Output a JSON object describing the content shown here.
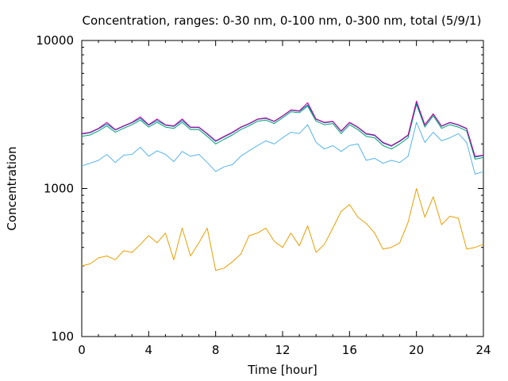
{
  "chart_data": {
    "type": "line",
    "title": "Concentration, ranges: 0-30 nm, 0-100 nm, 0-300 nm, total (5/9/1)",
    "xlabel": "Time [hour]",
    "ylabel": "Concentration",
    "xlim": [
      0,
      24
    ],
    "ylim": [
      100,
      10000
    ],
    "yscale": "log",
    "grid": false,
    "legend": "none",
    "xticks": [
      0,
      4,
      8,
      12,
      16,
      20,
      24
    ],
    "xtick_labels": [
      "0",
      "4",
      "8",
      "12",
      "16",
      "20",
      "24"
    ],
    "yticks": [
      100,
      1000,
      10000
    ],
    "ytick_labels": [
      "100",
      "1000",
      "10000"
    ],
    "series": [
      {
        "color": "#e69f00",
        "x": [
          0,
          0.5,
          1,
          1.5,
          2,
          2.5,
          3,
          3.5,
          4,
          4.5,
          5,
          5.5,
          6,
          6.5,
          7,
          7.5,
          8,
          8.5,
          9,
          9.5,
          10,
          10.5,
          11,
          11.5,
          12,
          12.5,
          13,
          13.5,
          14,
          14.5,
          15,
          15.5,
          16,
          16.5,
          17,
          17.5,
          18,
          18.5,
          19,
          19.5,
          20,
          20.5,
          21,
          21.5,
          22,
          22.5,
          23,
          23.5,
          24
        ],
        "values": [
          300,
          310,
          340,
          350,
          330,
          380,
          370,
          420,
          480,
          430,
          500,
          330,
          540,
          350,
          430,
          540,
          280,
          290,
          320,
          360,
          480,
          500,
          540,
          440,
          400,
          500,
          410,
          560,
          370,
          420,
          540,
          700,
          780,
          640,
          580,
          500,
          390,
          400,
          430,
          590,
          1000,
          640,
          880,
          570,
          650,
          630,
          390,
          400,
          420
        ]
      },
      {
        "color": "#56b4e9",
        "x": [
          0,
          0.5,
          1,
          1.5,
          2,
          2.5,
          3,
          3.5,
          4,
          4.5,
          5,
          5.5,
          6,
          6.5,
          7,
          7.5,
          8,
          8.5,
          9,
          9.5,
          10,
          10.5,
          11,
          11.5,
          12,
          12.5,
          13,
          13.5,
          14,
          14.5,
          15,
          15.5,
          16,
          16.5,
          17,
          17.5,
          18,
          18.5,
          19,
          19.5,
          20,
          20.5,
          21,
          21.5,
          22,
          22.5,
          23,
          23.5,
          24
        ],
        "values": [
          1420,
          1480,
          1550,
          1700,
          1500,
          1680,
          1700,
          1900,
          1650,
          1800,
          1700,
          1520,
          1780,
          1650,
          1700,
          1500,
          1300,
          1400,
          1450,
          1650,
          1800,
          1950,
          2100,
          2000,
          2200,
          2400,
          2350,
          2700,
          2050,
          1850,
          1950,
          1780,
          1950,
          2000,
          1550,
          1600,
          1480,
          1550,
          1500,
          1650,
          2800,
          2050,
          2400,
          2100,
          2200,
          2350,
          2050,
          1250,
          1300
        ]
      },
      {
        "color": "#009e73",
        "x": [
          0,
          0.5,
          1,
          1.5,
          2,
          2.5,
          3,
          3.5,
          4,
          4.5,
          5,
          5.5,
          6,
          6.5,
          7,
          7.5,
          8,
          8.5,
          9,
          9.5,
          10,
          10.5,
          11,
          11.5,
          12,
          12.5,
          13,
          13.5,
          14,
          14.5,
          15,
          15.5,
          16,
          16.5,
          17,
          17.5,
          18,
          18.5,
          19,
          19.5,
          20,
          20.5,
          21,
          21.5,
          22,
          22.5,
          23,
          23.5,
          24
        ],
        "values": [
          2250,
          2300,
          2450,
          2650,
          2400,
          2550,
          2700,
          2900,
          2600,
          2800,
          2600,
          2550,
          2800,
          2500,
          2500,
          2250,
          2000,
          2150,
          2300,
          2500,
          2650,
          2850,
          2900,
          2750,
          3000,
          3300,
          3250,
          3600,
          2850,
          2700,
          2750,
          2350,
          2700,
          2500,
          2250,
          2200,
          1950,
          1850,
          2000,
          2200,
          3700,
          2600,
          3100,
          2550,
          2700,
          2600,
          2450,
          1580,
          1620
        ]
      },
      {
        "color": "#0072b2",
        "x": [
          0,
          0.5,
          1,
          1.5,
          2,
          2.5,
          3,
          3.5,
          4,
          4.5,
          5,
          5.5,
          6,
          6.5,
          7,
          7.5,
          8,
          8.5,
          9,
          9.5,
          10,
          10.5,
          11,
          11.5,
          12,
          12.5,
          13,
          13.5,
          14,
          14.5,
          15,
          15.5,
          16,
          16.5,
          17,
          17.5,
          18,
          18.5,
          19,
          19.5,
          20,
          20.5,
          21,
          21.5,
          22,
          22.5,
          23,
          23.5,
          24
        ],
        "values": [
          2330,
          2380,
          2530,
          2730,
          2480,
          2630,
          2780,
          2980,
          2680,
          2880,
          2680,
          2630,
          2880,
          2580,
          2580,
          2330,
          2080,
          2230,
          2380,
          2580,
          2730,
          2930,
          2980,
          2830,
          3080,
          3380,
          3330,
          3680,
          2930,
          2780,
          2830,
          2430,
          2780,
          2580,
          2330,
          2280,
          2030,
          1930,
          2080,
          2280,
          3780,
          2680,
          3180,
          2630,
          2780,
          2680,
          2530,
          1630,
          1670
        ]
      },
      {
        "color": "#cc0099",
        "x": [
          0,
          0.5,
          1,
          1.5,
          2,
          2.5,
          3,
          3.5,
          4,
          4.5,
          5,
          5.5,
          6,
          6.5,
          7,
          7.5,
          8,
          8.5,
          9,
          9.5,
          10,
          10.5,
          11,
          11.5,
          12,
          12.5,
          13,
          13.5,
          14,
          14.5,
          15,
          15.5,
          16,
          16.5,
          17,
          17.5,
          18,
          18.5,
          19,
          19.5,
          20,
          20.5,
          21,
          21.5,
          22,
          22.5,
          23,
          23.5,
          24
        ],
        "values": [
          2350,
          2400,
          2550,
          2800,
          2500,
          2650,
          2800,
          3050,
          2700,
          2950,
          2700,
          2650,
          2950,
          2600,
          2600,
          2350,
          2100,
          2250,
          2400,
          2600,
          2750,
          2950,
          3000,
          2850,
          3100,
          3400,
          3350,
          3800,
          2950,
          2800,
          2850,
          2450,
          2800,
          2600,
          2350,
          2300,
          2050,
          1950,
          2100,
          2300,
          3900,
          2700,
          3200,
          2650,
          2800,
          2700,
          2550,
          1650,
          1680
        ]
      }
    ]
  }
}
